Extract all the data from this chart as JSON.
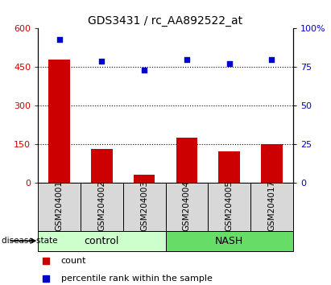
{
  "title": "GDS3431 / rc_AA892522_at",
  "categories": [
    "GSM204001",
    "GSM204002",
    "GSM204003",
    "GSM204004",
    "GSM204005",
    "GSM204017"
  ],
  "bar_values": [
    480,
    130,
    30,
    175,
    120,
    148
  ],
  "scatter_values": [
    93,
    79,
    73,
    80,
    77,
    80
  ],
  "bar_color": "#cc0000",
  "scatter_color": "#0000cc",
  "left_ylim": [
    0,
    600
  ],
  "right_ylim": [
    0,
    100
  ],
  "left_yticks": [
    0,
    150,
    300,
    450,
    600
  ],
  "right_yticks": [
    0,
    25,
    50,
    75,
    100
  ],
  "right_yticklabels": [
    "0",
    "25",
    "50",
    "75",
    "100%"
  ],
  "left_ycolor": "#cc0000",
  "right_ycolor": "#0000cc",
  "groups": [
    {
      "label": "control",
      "indices": [
        0,
        1,
        2
      ],
      "color": "#ccffcc"
    },
    {
      "label": "NASH",
      "indices": [
        3,
        4,
        5
      ],
      "color": "#66dd66"
    }
  ],
  "disease_state_label": "disease state",
  "legend_count_label": "count",
  "legend_percentile_label": "percentile rank within the sample",
  "bar_width": 0.5,
  "sample_bg_color": "#d8d8d8",
  "plot_bg_color": "#ffffff"
}
